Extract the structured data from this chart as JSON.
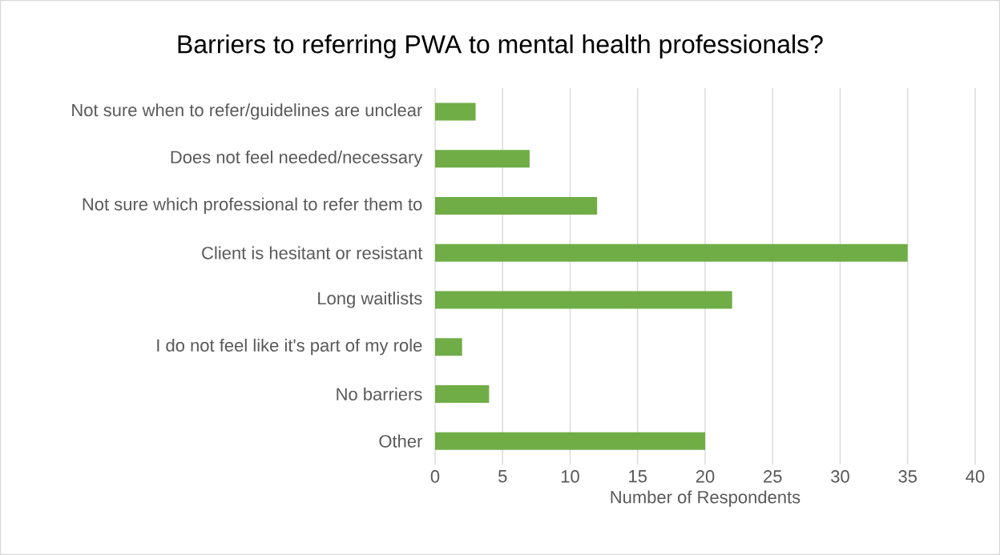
{
  "chart_data": {
    "type": "bar",
    "orientation": "horizontal",
    "title": "Barriers to referring PWA to mental health professionals?",
    "xlabel": "Number of Respondents",
    "categories": [
      "Not sure when to refer/guidelines are unclear",
      "Does not feel needed/necessary",
      "Not sure which professional to refer them to",
      "Client is hesitant or resistant",
      "Long waitlists",
      "I do not feel like it's part of my role",
      "No barriers",
      "Other"
    ],
    "values": [
      3,
      7,
      12,
      35,
      22,
      2,
      4,
      20
    ],
    "color": "#70ad47",
    "xlim": [
      0,
      40
    ],
    "xticks": [
      0,
      5,
      10,
      15,
      20,
      25,
      30,
      35,
      40
    ],
    "grid": "x"
  }
}
